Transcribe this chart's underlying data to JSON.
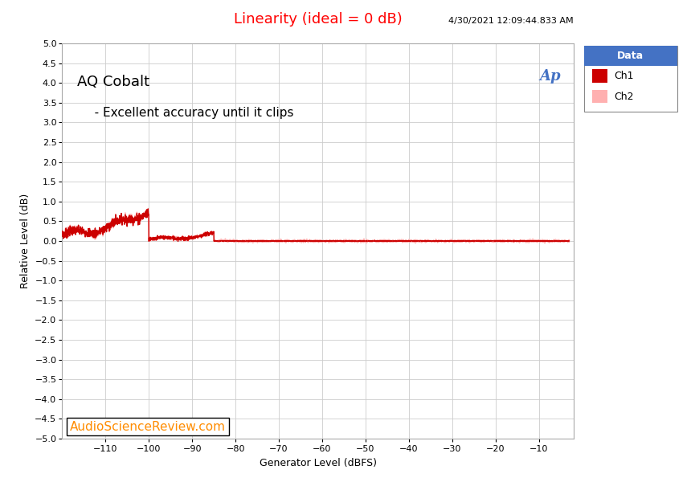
{
  "title": "Linearity (ideal = 0 dB)",
  "title_color": "#FF0000",
  "timestamp": "4/30/2021 12:09:44.833 AM",
  "annotation1": "AQ Cobalt",
  "annotation2": "   - Excellent accuracy until it clips",
  "xlabel": "Generator Level (dBFS)",
  "ylabel": "Relative Level (dB)",
  "xlim": [
    -120,
    -2
  ],
  "ylim": [
    -5.0,
    5.0
  ],
  "xticks": [
    -110,
    -100,
    -90,
    -80,
    -70,
    -60,
    -50,
    -40,
    -30,
    -20,
    -10
  ],
  "yticks": [
    -5.0,
    -4.5,
    -4.0,
    -3.5,
    -3.0,
    -2.5,
    -2.0,
    -1.5,
    -1.0,
    -0.5,
    0.0,
    0.5,
    1.0,
    1.5,
    2.0,
    2.5,
    3.0,
    3.5,
    4.0,
    4.5,
    5.0
  ],
  "ch1_color": "#CC0000",
  "ch2_color": "#FFB0B0",
  "bg_color": "#FFFFFF",
  "plot_bg_color": "#FFFFFF",
  "grid_color": "#CCCCCC",
  "legend_header_color": "#4472C4",
  "legend_header_text": "Data",
  "legend_ch1": "Ch1",
  "legend_ch2": "Ch2",
  "watermark": "AudioScienceReview.com",
  "watermark_color": "#FF8C00",
  "watermark_border_color": "#000000",
  "ap_logo_color": "#4472C4",
  "font_size_title": 13,
  "font_size_axis_label": 9,
  "font_size_tick": 8,
  "font_size_annotation1": 13,
  "font_size_annotation2": 11,
  "font_size_timestamp": 8,
  "font_size_watermark": 11,
  "font_size_legend": 9
}
